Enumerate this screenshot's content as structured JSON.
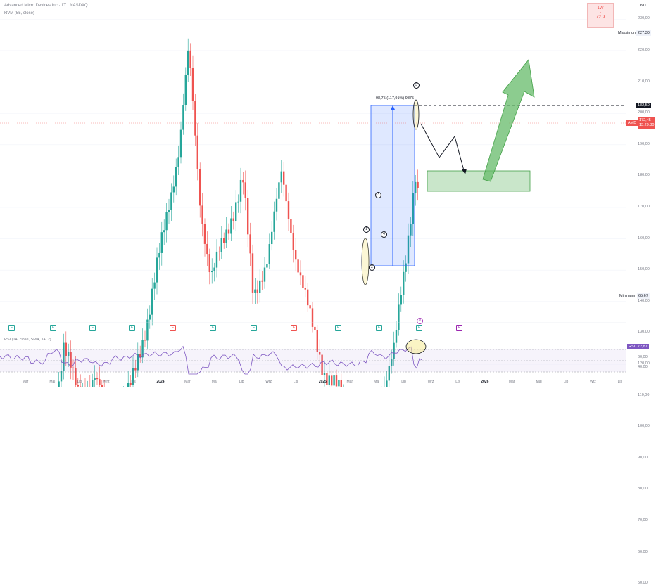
{
  "header": {
    "title": "Advanced Micro Devices Inc · 1T · NASDAQ",
    "indicator": "RVM (55, close)"
  },
  "currency": "USD",
  "widget": {
    "line1": "1W",
    "line2": "-",
    "value": "72.9"
  },
  "y_axis": {
    "ticks": [
      "230,00",
      "220,00",
      "210,00",
      "200,00",
      "190,00",
      "180,00",
      "170,00",
      "160,00",
      "150,00",
      "140,00",
      "130,00",
      "120,00",
      "110,00",
      "100,00",
      "90,00",
      "80,00",
      "70,00",
      "60,00",
      "50,00"
    ],
    "maximum_label": "Maksimum",
    "maximum_value": "227,30",
    "minimum_label": "Minimum",
    "minimum_value": "65,67",
    "level_tag": "182,50",
    "price_ticker": "AMD",
    "price_value": "172,45",
    "price_timer": "13:29:30"
  },
  "x_axis": [
    "Mar",
    "Maj",
    "Lip",
    "Wrz",
    "Lis",
    "2024",
    "Mar",
    "Maj",
    "Lip",
    "Wrz",
    "Lis",
    "2025",
    "Mar",
    "Maj",
    "Lip",
    "Wrz",
    "Lis",
    "2026",
    "Mar",
    "Maj",
    "Lip",
    "Wrz",
    "Lis"
  ],
  "measure_label": "98,75 (117,91%) 9875",
  "waves": [
    "1",
    "2",
    "3",
    "4",
    "5"
  ],
  "earnings": [
    {
      "t": "E",
      "c": "g"
    },
    {
      "t": "E",
      "c": "g"
    },
    {
      "t": "E",
      "c": "g"
    },
    {
      "t": "E",
      "c": "g"
    },
    {
      "t": "E",
      "c": "r"
    },
    {
      "t": "E",
      "c": "g"
    },
    {
      "t": "E",
      "c": "g"
    },
    {
      "t": "E",
      "c": "r"
    },
    {
      "t": "E",
      "c": "g"
    },
    {
      "t": "E",
      "c": "g"
    },
    {
      "t": "E",
      "c": "g"
    },
    {
      "t": "E",
      "c": "p"
    }
  ],
  "dividend_marker": "#",
  "rsi": {
    "title": "RSI (14, close, SMA, 14, 2)",
    "tag": "RSI",
    "value": "72,87",
    "ticks": [
      "60,00",
      "40,00"
    ]
  },
  "colors": {
    "up": "#26a69a",
    "down": "#ef5350",
    "rsi": "#7e57c2",
    "measure": "#2962ff"
  }
}
